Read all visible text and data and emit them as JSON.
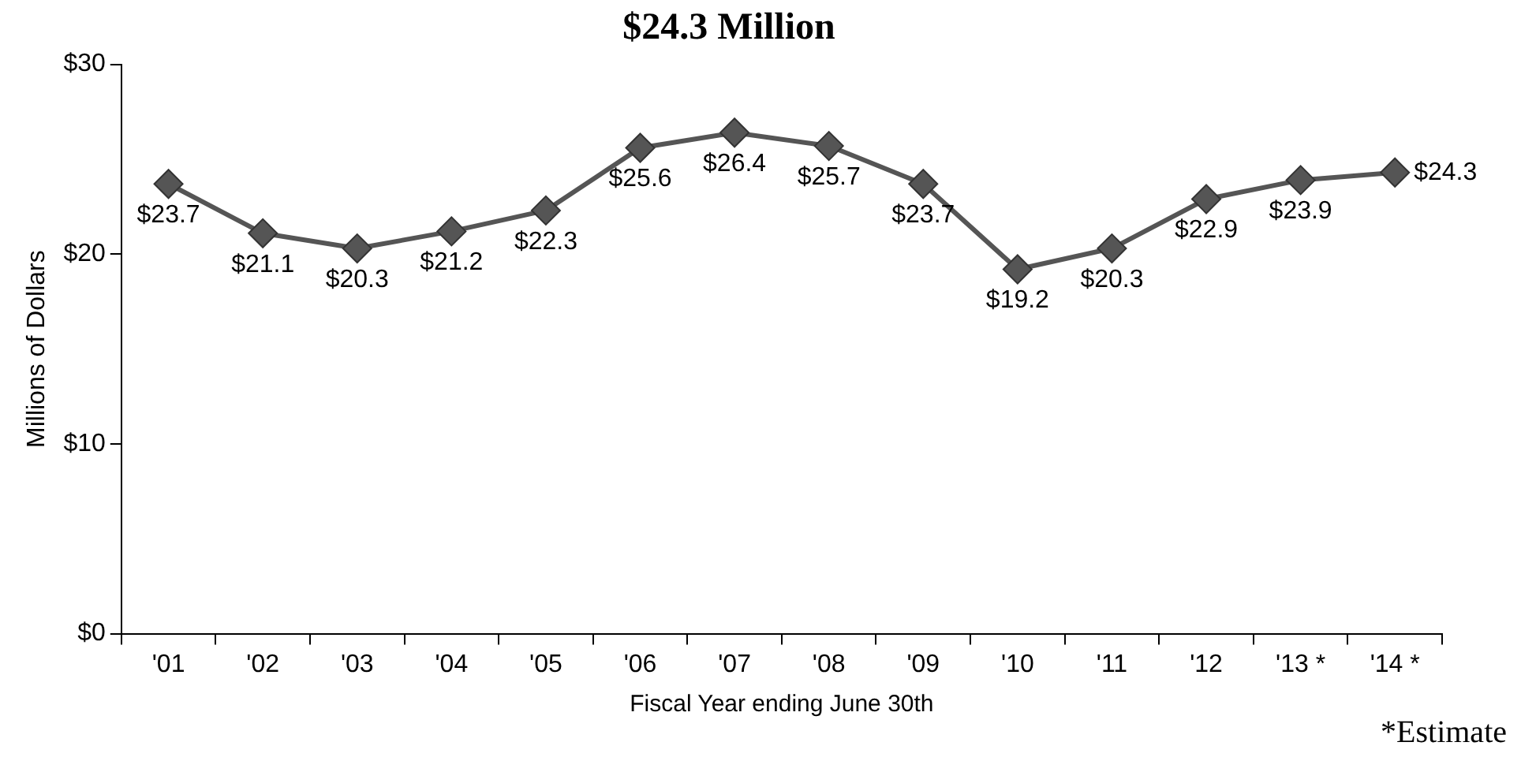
{
  "chart_data": {
    "type": "line",
    "title": "$24.3 Million",
    "xlabel": "Fiscal Year ending June 30th",
    "ylabel": "Millions of Dollars",
    "categories": [
      "'01",
      "'02",
      "'03",
      "'04",
      "'05",
      "'06",
      "'07",
      "'08",
      "'09",
      "'10",
      "'11",
      "'12",
      "'13 *",
      "'14 *"
    ],
    "series": [
      {
        "color": "#555555",
        "values": [
          23.7,
          21.1,
          20.3,
          21.2,
          22.3,
          25.6,
          26.4,
          25.7,
          23.7,
          19.2,
          20.3,
          22.9,
          23.9,
          24.3
        ],
        "value_labels": [
          "$23.7",
          "$21.1",
          "$20.3",
          "$21.2",
          "$22.3",
          "$25.6",
          "$26.4",
          "$25.7",
          "$23.7",
          "$19.2",
          "$20.3",
          "$22.9",
          "$23.9",
          "$24.3"
        ]
      }
    ],
    "ylim": [
      0,
      30
    ],
    "yticks": [
      {
        "value": 0,
        "label": "$0"
      },
      {
        "value": 10,
        "label": "$10"
      },
      {
        "value": 20,
        "label": "$20"
      },
      {
        "value": 30,
        "label": "$30"
      }
    ],
    "annotations": [
      "*Estimate"
    ],
    "marker": "diamond",
    "line_style": "solid",
    "grid": false,
    "legend": false
  }
}
